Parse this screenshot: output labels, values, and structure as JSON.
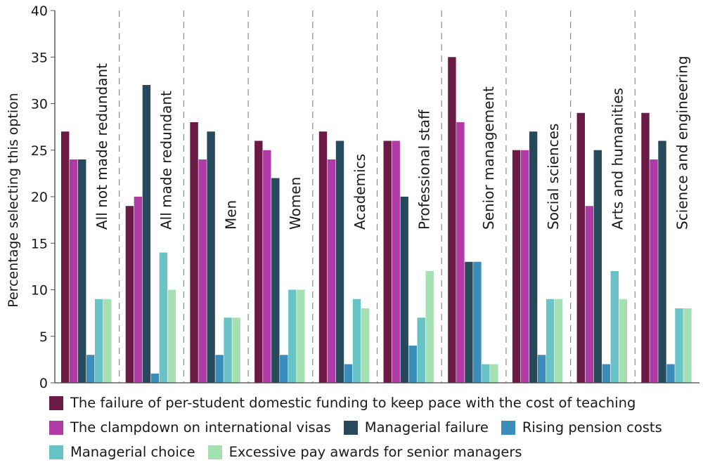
{
  "chart_data": {
    "type": "bar",
    "title": "",
    "xlabel": "",
    "ylabel": "Percentage selecting this option",
    "ylim": [
      0,
      40
    ],
    "yticks": [
      "0",
      "5",
      "10",
      "15",
      "20",
      "25",
      "30",
      "35",
      "40"
    ],
    "grid": "vertical dashed separators between groups",
    "legend_position": "bottom",
    "categories": [
      "All not made redundant",
      "All made redundant",
      "Men",
      "Women",
      "Academics",
      "Professional staff",
      "Senior management",
      "Social sciences",
      "Arts and humanities",
      "Science and engineering"
    ],
    "series": [
      {
        "name": "The failure of per-student domestic funding to keep pace with the cost of teaching",
        "color": "#6b1a45",
        "values": [
          27,
          19,
          28,
          26,
          27,
          26,
          35,
          25,
          29,
          29
        ]
      },
      {
        "name": "The clampdown on international visas",
        "color": "#b03aa6",
        "values": [
          24,
          20,
          24,
          25,
          24,
          26,
          28,
          25,
          19,
          24
        ]
      },
      {
        "name": "Managerial failure",
        "color": "#27495c",
        "values": [
          24,
          32,
          27,
          22,
          26,
          20,
          13,
          27,
          25,
          26
        ]
      },
      {
        "name": "Rising pension costs",
        "color": "#3a8cba",
        "values": [
          3,
          1,
          3,
          3,
          2,
          4,
          13,
          3,
          2,
          2
        ]
      },
      {
        "name": "Managerial choice",
        "color": "#68c3c6",
        "values": [
          9,
          14,
          7,
          10,
          9,
          7,
          2,
          9,
          12,
          8
        ]
      },
      {
        "name": "Excessive pay awards for senior managers",
        "color": "#a5e0b3",
        "values": [
          9,
          10,
          7,
          10,
          8,
          12,
          2,
          9,
          9,
          8
        ]
      }
    ]
  },
  "legend": {
    "rows": [
      [
        0
      ],
      [
        1,
        2,
        3
      ],
      [
        4,
        5
      ]
    ]
  }
}
